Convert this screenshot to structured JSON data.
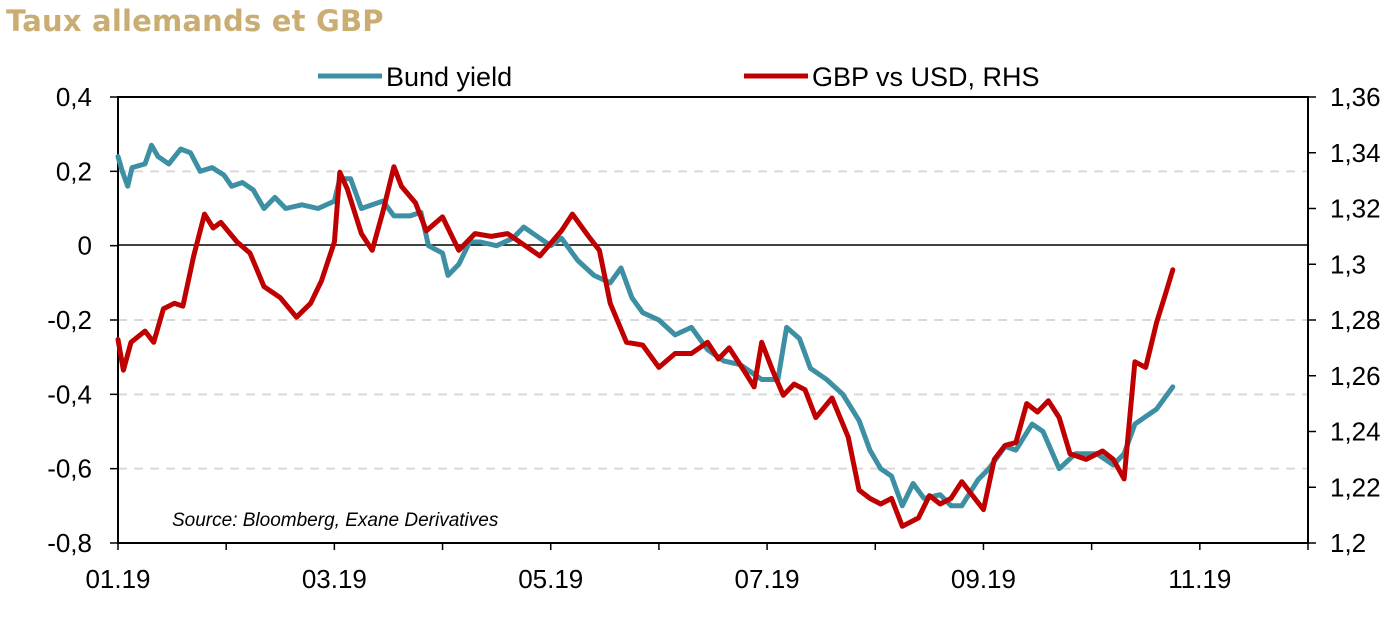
{
  "title": "Taux allemands et GBP",
  "source": "Source: Bloomberg, Exane Derivatives",
  "colors": {
    "title": "#c9ad72",
    "bund": "#3d8fa3",
    "gbp": "#c00000",
    "grid": "#d9d9d9"
  },
  "chart_data": {
    "type": "line",
    "title": "Taux allemands et GBP",
    "x_unit": "month index (1 = Jan 2019)",
    "x_tick_labels": [
      {
        "x": 1,
        "label": "01.19"
      },
      {
        "x": 3,
        "label": "03.19"
      },
      {
        "x": 5,
        "label": "05.19"
      },
      {
        "x": 7,
        "label": "07.19"
      },
      {
        "x": 9,
        "label": "09.19"
      },
      {
        "x": 11,
        "label": "11.19"
      }
    ],
    "x_range": [
      1,
      12
    ],
    "y_left": {
      "range": [
        -0.8,
        0.4
      ],
      "ticks": [
        "0,4",
        "0,2",
        "0",
        "-0,2",
        "-0,4",
        "-0,6",
        "-0,8"
      ],
      "tick_values": [
        0.4,
        0.2,
        0,
        -0.2,
        -0.4,
        -0.6,
        -0.8
      ]
    },
    "y_right": {
      "range": [
        1.2,
        1.36
      ],
      "ticks": [
        "1,36",
        "1,34",
        "1,32",
        "1,3",
        "1,28",
        "1,26",
        "1,24",
        "1,22",
        "1,2"
      ],
      "tick_values": [
        1.36,
        1.34,
        1.32,
        1.3,
        1.28,
        1.26,
        1.24,
        1.22,
        1.2
      ]
    },
    "grid": "dashed horizontal",
    "legend": "top",
    "series": [
      {
        "name": "Bund yield",
        "axis": "left",
        "points": [
          [
            1.0,
            0.24
          ],
          [
            1.04,
            0.2
          ],
          [
            1.09,
            0.16
          ],
          [
            1.13,
            0.21
          ],
          [
            1.25,
            0.22
          ],
          [
            1.31,
            0.27
          ],
          [
            1.37,
            0.24
          ],
          [
            1.47,
            0.22
          ],
          [
            1.58,
            0.26
          ],
          [
            1.67,
            0.25
          ],
          [
            1.76,
            0.2
          ],
          [
            1.87,
            0.21
          ],
          [
            1.98,
            0.19
          ],
          [
            2.05,
            0.16
          ],
          [
            2.15,
            0.17
          ],
          [
            2.25,
            0.15
          ],
          [
            2.35,
            0.1
          ],
          [
            2.45,
            0.13
          ],
          [
            2.55,
            0.1
          ],
          [
            2.7,
            0.11
          ],
          [
            2.85,
            0.1
          ],
          [
            3.0,
            0.12
          ],
          [
            3.05,
            0.18
          ],
          [
            3.15,
            0.18
          ],
          [
            3.25,
            0.1
          ],
          [
            3.35,
            0.11
          ],
          [
            3.45,
            0.12
          ],
          [
            3.55,
            0.08
          ],
          [
            3.7,
            0.08
          ],
          [
            3.8,
            0.09
          ],
          [
            3.87,
            0.0
          ],
          [
            4.0,
            -0.02
          ],
          [
            4.05,
            -0.08
          ],
          [
            4.15,
            -0.05
          ],
          [
            4.25,
            0.01
          ],
          [
            4.35,
            0.01
          ],
          [
            4.5,
            0.0
          ],
          [
            4.65,
            0.02
          ],
          [
            4.75,
            0.05
          ],
          [
            4.85,
            0.03
          ],
          [
            5.0,
            0.0
          ],
          [
            5.1,
            0.02
          ],
          [
            5.25,
            -0.04
          ],
          [
            5.4,
            -0.08
          ],
          [
            5.55,
            -0.1
          ],
          [
            5.65,
            -0.06
          ],
          [
            5.75,
            -0.14
          ],
          [
            5.85,
            -0.18
          ],
          [
            6.0,
            -0.2
          ],
          [
            6.15,
            -0.24
          ],
          [
            6.3,
            -0.22
          ],
          [
            6.45,
            -0.28
          ],
          [
            6.6,
            -0.31
          ],
          [
            6.75,
            -0.32
          ],
          [
            6.85,
            -0.34
          ],
          [
            6.95,
            -0.36
          ],
          [
            7.1,
            -0.36
          ],
          [
            7.18,
            -0.22
          ],
          [
            7.3,
            -0.25
          ],
          [
            7.4,
            -0.33
          ],
          [
            7.55,
            -0.36
          ],
          [
            7.7,
            -0.4
          ],
          [
            7.85,
            -0.47
          ],
          [
            7.95,
            -0.55
          ],
          [
            8.05,
            -0.6
          ],
          [
            8.15,
            -0.62
          ],
          [
            8.25,
            -0.7
          ],
          [
            8.35,
            -0.64
          ],
          [
            8.45,
            -0.68
          ],
          [
            8.6,
            -0.67
          ],
          [
            8.7,
            -0.7
          ],
          [
            8.8,
            -0.7
          ],
          [
            8.95,
            -0.63
          ],
          [
            9.05,
            -0.6
          ],
          [
            9.2,
            -0.54
          ],
          [
            9.3,
            -0.55
          ],
          [
            9.45,
            -0.48
          ],
          [
            9.55,
            -0.5
          ],
          [
            9.7,
            -0.6
          ],
          [
            9.85,
            -0.56
          ],
          [
            10.05,
            -0.56
          ],
          [
            10.2,
            -0.59
          ],
          [
            10.3,
            -0.56
          ],
          [
            10.4,
            -0.48
          ],
          [
            10.5,
            -0.46
          ],
          [
            10.6,
            -0.44
          ],
          [
            10.75,
            -0.38
          ]
        ]
      },
      {
        "name": "GBP vs USD, RHS",
        "axis": "right",
        "points": [
          [
            1.0,
            1.273
          ],
          [
            1.05,
            1.262
          ],
          [
            1.12,
            1.272
          ],
          [
            1.25,
            1.276
          ],
          [
            1.33,
            1.272
          ],
          [
            1.42,
            1.284
          ],
          [
            1.52,
            1.286
          ],
          [
            1.6,
            1.285
          ],
          [
            1.7,
            1.303
          ],
          [
            1.8,
            1.318
          ],
          [
            1.88,
            1.313
          ],
          [
            1.95,
            1.315
          ],
          [
            2.1,
            1.308
          ],
          [
            2.22,
            1.304
          ],
          [
            2.35,
            1.292
          ],
          [
            2.5,
            1.288
          ],
          [
            2.65,
            1.281
          ],
          [
            2.78,
            1.286
          ],
          [
            2.88,
            1.294
          ],
          [
            3.0,
            1.308
          ],
          [
            3.05,
            1.333
          ],
          [
            3.12,
            1.327
          ],
          [
            3.25,
            1.311
          ],
          [
            3.35,
            1.305
          ],
          [
            3.45,
            1.319
          ],
          [
            3.55,
            1.335
          ],
          [
            3.62,
            1.328
          ],
          [
            3.75,
            1.322
          ],
          [
            3.85,
            1.312
          ],
          [
            4.0,
            1.317
          ],
          [
            4.15,
            1.305
          ],
          [
            4.3,
            1.311
          ],
          [
            4.45,
            1.31
          ],
          [
            4.6,
            1.311
          ],
          [
            4.75,
            1.307
          ],
          [
            4.9,
            1.303
          ],
          [
            5.1,
            1.312
          ],
          [
            5.2,
            1.318
          ],
          [
            5.35,
            1.31
          ],
          [
            5.45,
            1.305
          ],
          [
            5.55,
            1.286
          ],
          [
            5.7,
            1.272
          ],
          [
            5.85,
            1.271
          ],
          [
            6.0,
            1.263
          ],
          [
            6.15,
            1.268
          ],
          [
            6.3,
            1.268
          ],
          [
            6.45,
            1.272
          ],
          [
            6.55,
            1.266
          ],
          [
            6.65,
            1.27
          ],
          [
            6.8,
            1.261
          ],
          [
            6.88,
            1.256
          ],
          [
            6.95,
            1.272
          ],
          [
            7.05,
            1.262
          ],
          [
            7.15,
            1.253
          ],
          [
            7.25,
            1.257
          ],
          [
            7.35,
            1.255
          ],
          [
            7.45,
            1.245
          ],
          [
            7.6,
            1.252
          ],
          [
            7.75,
            1.238
          ],
          [
            7.85,
            1.219
          ],
          [
            7.95,
            1.216
          ],
          [
            8.05,
            1.214
          ],
          [
            8.15,
            1.216
          ],
          [
            8.25,
            1.206
          ],
          [
            8.4,
            1.209
          ],
          [
            8.5,
            1.217
          ],
          [
            8.6,
            1.214
          ],
          [
            8.7,
            1.216
          ],
          [
            8.8,
            1.222
          ],
          [
            8.9,
            1.217
          ],
          [
            9.0,
            1.212
          ],
          [
            9.1,
            1.23
          ],
          [
            9.2,
            1.235
          ],
          [
            9.3,
            1.236
          ],
          [
            9.4,
            1.25
          ],
          [
            9.5,
            1.247
          ],
          [
            9.6,
            1.251
          ],
          [
            9.7,
            1.245
          ],
          [
            9.8,
            1.232
          ],
          [
            9.95,
            1.23
          ],
          [
            10.1,
            1.233
          ],
          [
            10.2,
            1.23
          ],
          [
            10.3,
            1.223
          ],
          [
            10.4,
            1.265
          ],
          [
            10.5,
            1.263
          ],
          [
            10.6,
            1.279
          ],
          [
            10.68,
            1.289
          ],
          [
            10.75,
            1.298
          ]
        ]
      }
    ]
  }
}
